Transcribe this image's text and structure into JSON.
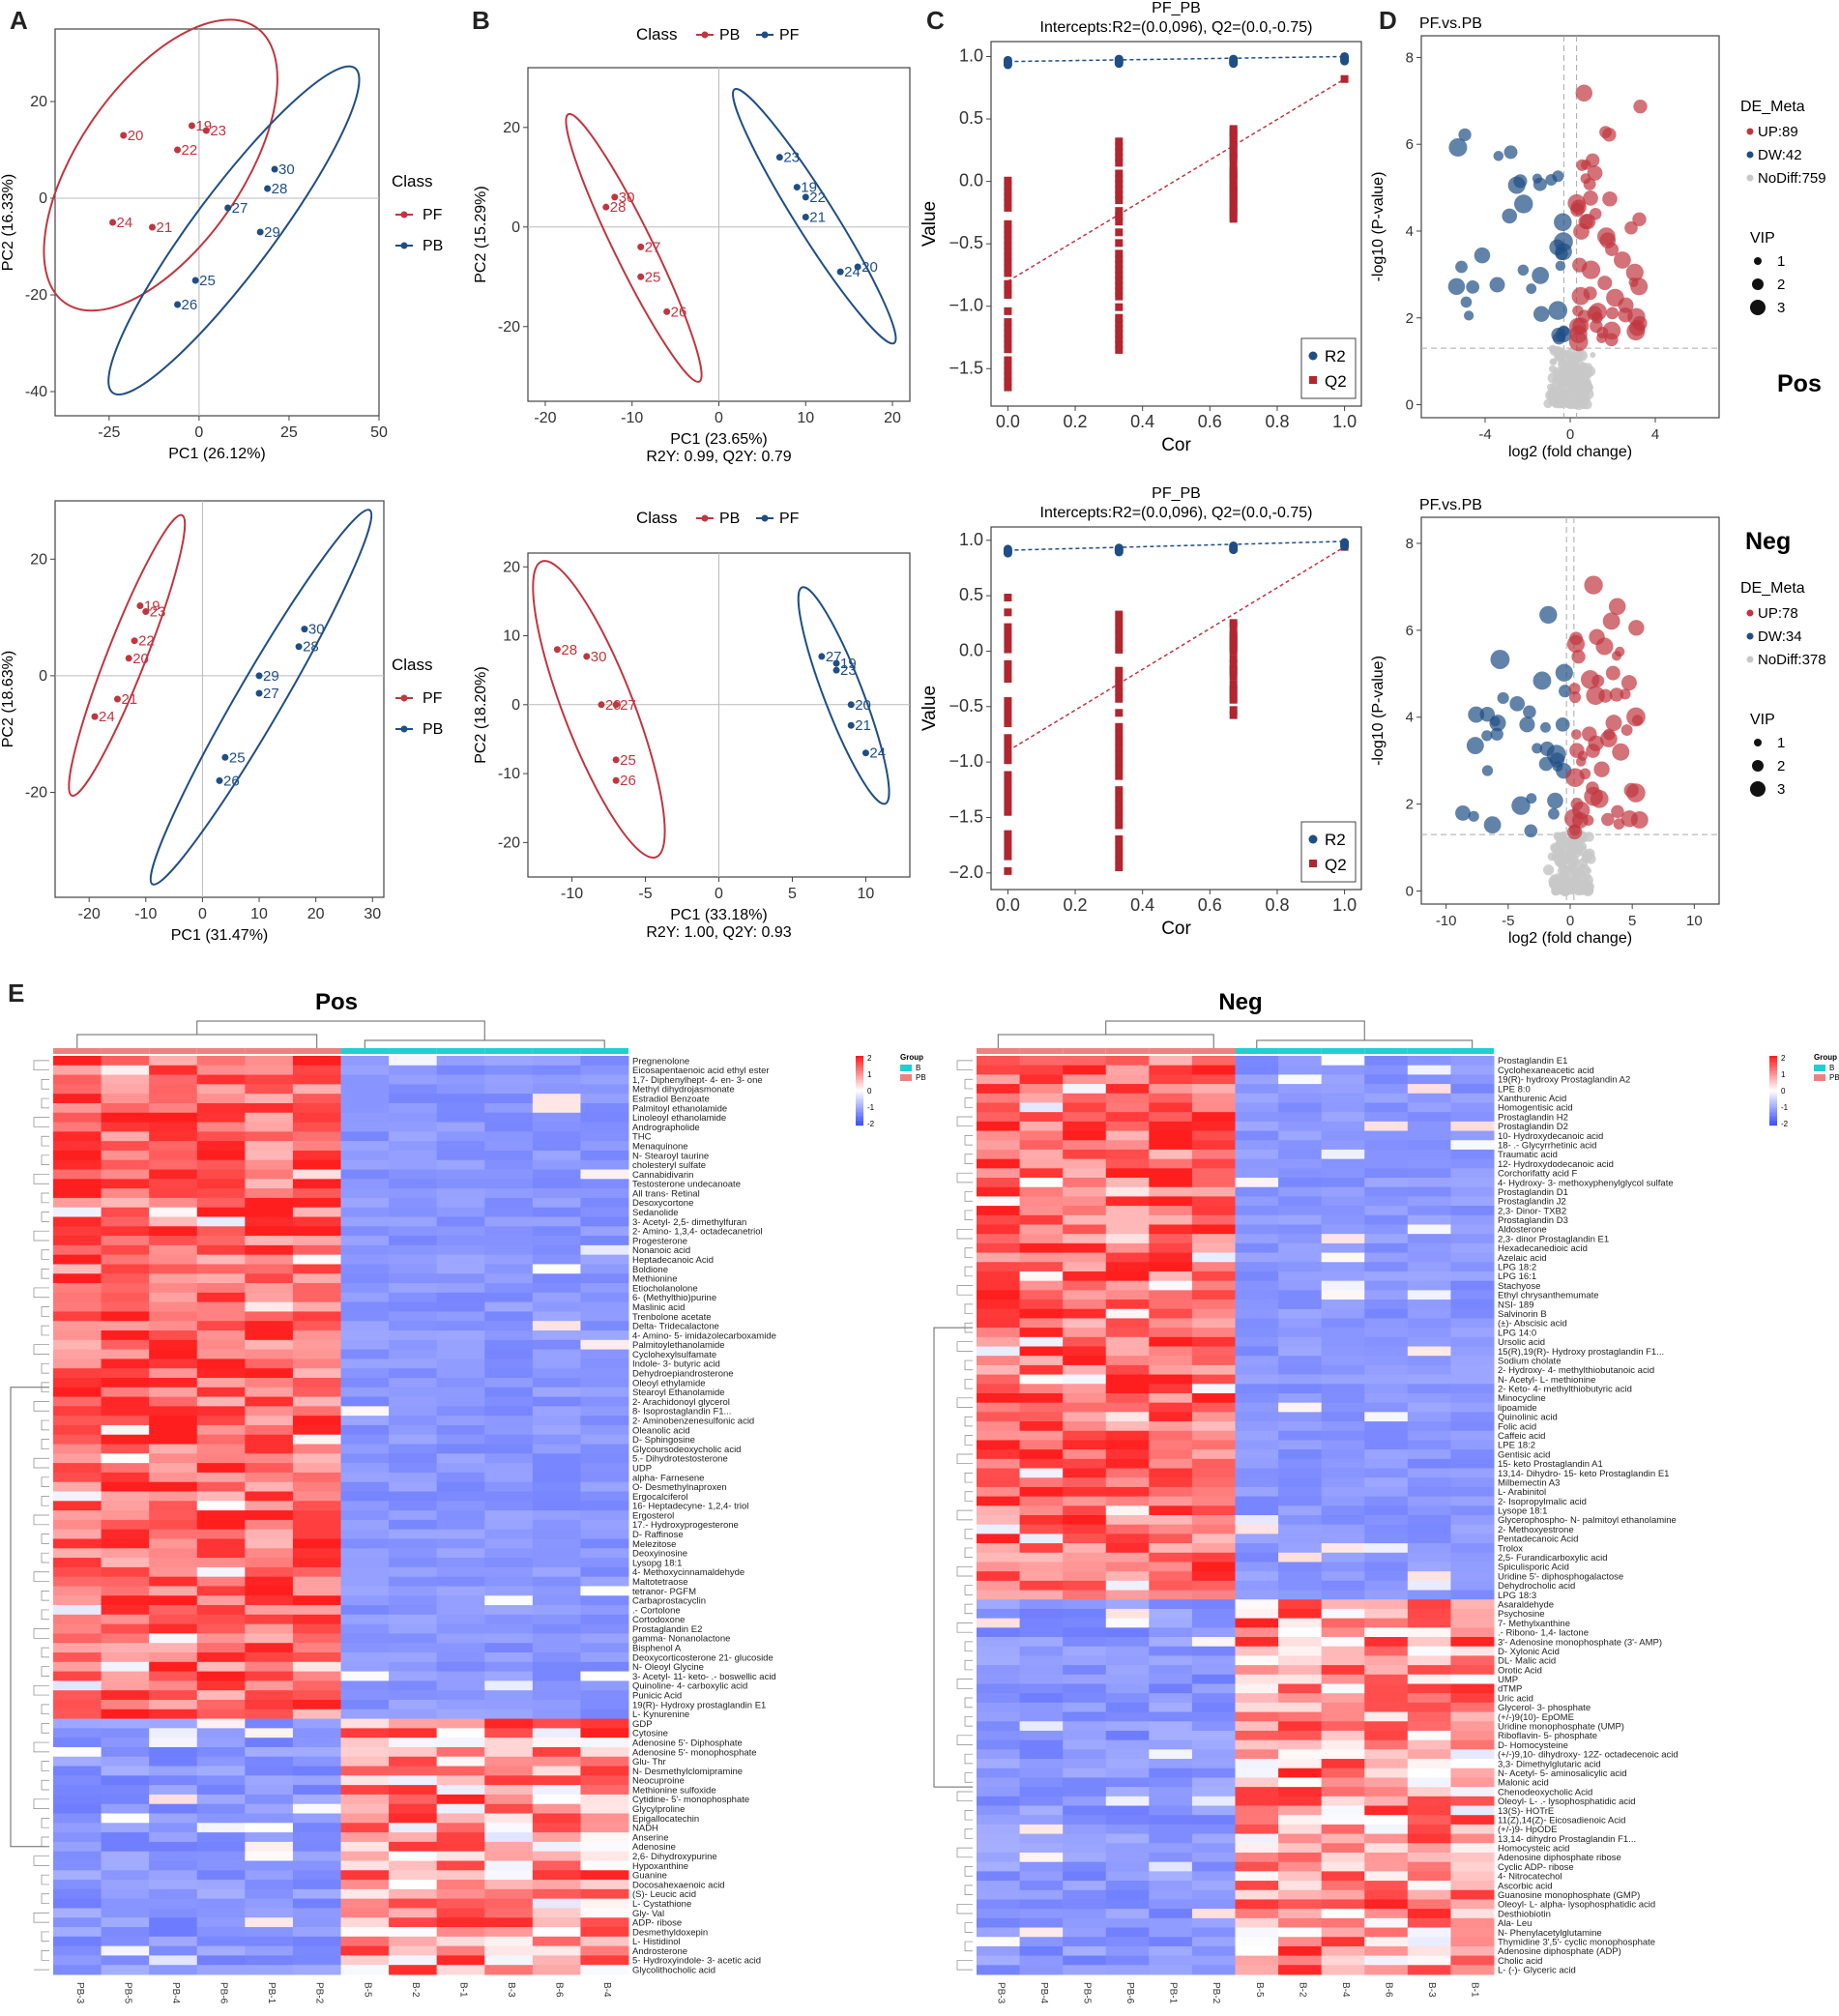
{
  "panel_labels": {
    "a": "A",
    "b": "B",
    "c": "C",
    "d": "D",
    "e": "E"
  },
  "chart_data": [
    {
      "id": "A_pos",
      "type": "scatter",
      "title": "",
      "xlabel": "PC1 (26.12%)",
      "ylabel": "PC2 (16.33%)",
      "xlim": [
        -40,
        50
      ],
      "ylim": [
        -45,
        35
      ],
      "xticks": [
        -25,
        0,
        25,
        50
      ],
      "yticks": [
        -40,
        -20,
        0,
        20
      ],
      "legend_title": "Class",
      "legend": [
        "PF",
        "PB"
      ],
      "series": [
        {
          "name": "PF",
          "color": "#c0363f",
          "points": [
            [
              -21,
              13,
              "20"
            ],
            [
              -2,
              15,
              "19"
            ],
            [
              2,
              14,
              "23"
            ],
            [
              -6,
              10,
              "22"
            ],
            [
              -24,
              -5,
              "24"
            ],
            [
              -13,
              -6,
              "21"
            ]
          ]
        },
        {
          "name": "PB",
          "color": "#1f4e85",
          "points": [
            [
              21,
              6,
              "30"
            ],
            [
              19,
              2,
              "28"
            ],
            [
              8,
              -2,
              "27"
            ],
            [
              17,
              -7,
              "29"
            ],
            [
              -1,
              -17,
              "25"
            ],
            [
              -6,
              -22,
              "26"
            ]
          ]
        }
      ]
    },
    {
      "id": "B_pos",
      "type": "scatter",
      "title": "",
      "xlabel": "PC1 (23.65%)",
      "ylabel": "PC2 (15.29%)",
      "subtitle": "R2Y: 0.99, Q2Y: 0.79",
      "xlim": [
        -22,
        22
      ],
      "ylim": [
        -35,
        32
      ],
      "xticks": [
        -20,
        -10,
        0,
        10,
        20
      ],
      "yticks": [
        -20,
        0,
        20
      ],
      "legend_title": "Class",
      "legend": [
        "PB",
        "PF"
      ],
      "series": [
        {
          "name": "PB",
          "color": "#c0363f",
          "points": [
            [
              -12,
              6,
              "30"
            ],
            [
              -13,
              4,
              "28"
            ],
            [
              -9,
              -4,
              "27"
            ],
            [
              -9,
              -10,
              "25"
            ],
            [
              -6,
              -17,
              "26"
            ]
          ]
        },
        {
          "name": "PF",
          "color": "#1f4e85",
          "points": [
            [
              7,
              14,
              "23"
            ],
            [
              9,
              8,
              "19"
            ],
            [
              10,
              6,
              "22"
            ],
            [
              10,
              2,
              "21"
            ],
            [
              16,
              -8,
              "20"
            ],
            [
              14,
              -9,
              "24"
            ]
          ]
        }
      ]
    },
    {
      "id": "C_pos",
      "type": "scatter",
      "title": "PF_PB",
      "subtitle": "Intercepts:R2=(0.0,096), Q2=(0.0,-0.75)",
      "xlabel": "Cor",
      "ylabel": "Value",
      "xlim": [
        -0.05,
        1.05
      ],
      "ylim": [
        -1.8,
        1.12
      ],
      "xticks": [
        0.0,
        0.2,
        0.4,
        0.6,
        0.8,
        1.0
      ],
      "yticks": [
        -1.5,
        -1.0,
        -0.5,
        0.0,
        0.5,
        1.0
      ],
      "legend": [
        "R2",
        "Q2"
      ],
      "r2_points": [
        [
          0,
          0.97
        ],
        [
          0.33,
          0.98
        ],
        [
          0.67,
          0.98
        ],
        [
          1.0,
          1.0
        ]
      ],
      "q2_columns": [
        [
          0,
          -1.65,
          0.05
        ],
        [
          0.33,
          -1.35,
          0.32
        ],
        [
          0.67,
          -0.3,
          0.42
        ]
      ],
      "r2_line": [
        [
          0,
          0.96
        ],
        [
          1,
          1.0
        ]
      ],
      "q2_line": [
        [
          0,
          -0.8
        ],
        [
          1,
          0.82
        ]
      ]
    },
    {
      "id": "D_pos",
      "type": "scatter",
      "title": "PF.vs.PB",
      "xlabel": "log2 (fold change)",
      "ylabel": "-log10 (P-value)",
      "xlim": [
        -7,
        7
      ],
      "ylim": [
        -0.3,
        8.5
      ],
      "xticks": [
        -4,
        0,
        4
      ],
      "yticks": [
        0,
        2,
        4,
        6,
        8
      ],
      "mode": "Pos",
      "legend_title": "DE_Meta",
      "legend": [
        "UP:89",
        "DW:42",
        "NoDiff:759"
      ],
      "vip_title": "VIP",
      "vip": [
        "1",
        "2",
        "3"
      ],
      "threshold_y": 1.3
    },
    {
      "id": "A_neg",
      "type": "scatter",
      "title": "",
      "xlabel": "PC1 (31.47%)",
      "ylabel": "PC2 (18.63%)",
      "xlim": [
        -26,
        32
      ],
      "ylim": [
        -38,
        30
      ],
      "xticks": [
        -20,
        -10,
        0,
        10,
        20,
        30
      ],
      "yticks": [
        -20,
        0,
        20
      ],
      "legend_title": "Class",
      "legend": [
        "PF",
        "PB"
      ],
      "series": [
        {
          "name": "PF",
          "color": "#c0363f",
          "points": [
            [
              -11,
              12,
              "19"
            ],
            [
              -10,
              11,
              "23"
            ],
            [
              -12,
              6,
              "22"
            ],
            [
              -13,
              3,
              "20"
            ],
            [
              -15,
              -4,
              "21"
            ],
            [
              -19,
              -7,
              "24"
            ]
          ]
        },
        {
          "name": "PB",
          "color": "#1f4e85",
          "points": [
            [
              18,
              8,
              "30"
            ],
            [
              17,
              5,
              "28"
            ],
            [
              10,
              0,
              "29"
            ],
            [
              10,
              -3,
              "27"
            ],
            [
              4,
              -14,
              "25"
            ],
            [
              3,
              -18,
              "26"
            ]
          ]
        }
      ]
    },
    {
      "id": "B_neg",
      "type": "scatter",
      "title": "",
      "xlabel": "PC1 (33.18%)",
      "ylabel": "PC2 (18.20%)",
      "subtitle": "R2Y: 1.00, Q2Y: 0.93",
      "xlim": [
        -13,
        13
      ],
      "ylim": [
        -25,
        22
      ],
      "xticks": [
        -10,
        -5,
        0,
        5,
        10
      ],
      "yticks": [
        -20,
        -10,
        0,
        10,
        20
      ],
      "legend_title": "Class",
      "legend": [
        "PB",
        "PF"
      ],
      "series": [
        {
          "name": "PB",
          "color": "#c0363f",
          "points": [
            [
              -11,
              8,
              "28"
            ],
            [
              -9,
              7,
              "30"
            ],
            [
              -8,
              0,
              "29"
            ],
            [
              -7,
              0,
              "27"
            ],
            [
              -7,
              -8,
              "25"
            ],
            [
              -7,
              -11,
              "26"
            ]
          ]
        },
        {
          "name": "PF",
          "color": "#1f4e85",
          "points": [
            [
              7,
              7,
              "27"
            ],
            [
              8,
              6,
              "19"
            ],
            [
              8,
              5,
              "23"
            ],
            [
              9,
              0,
              "20"
            ],
            [
              9,
              -3,
              "21"
            ],
            [
              10,
              -7,
              "24"
            ]
          ]
        }
      ]
    },
    {
      "id": "C_neg",
      "type": "scatter",
      "title": "PF_PB",
      "subtitle": "Intercepts:R2=(0.0,096), Q2=(0.0,-0.75)",
      "xlabel": "Cor",
      "ylabel": "Value",
      "xlim": [
        -0.05,
        1.05
      ],
      "ylim": [
        -2.15,
        1.12
      ],
      "xticks": [
        0.0,
        0.2,
        0.4,
        0.6,
        0.8,
        1.0
      ],
      "yticks": [
        -2.0,
        -1.5,
        -1.0,
        -0.5,
        0.0,
        0.5,
        1.0
      ],
      "legend": [
        "R2",
        "Q2"
      ],
      "r2_points": [
        [
          0,
          0.92
        ],
        [
          0.33,
          0.93
        ],
        [
          0.67,
          0.95
        ],
        [
          1.0,
          0.98
        ]
      ],
      "q2_columns": [
        [
          0,
          -2.05,
          0.55
        ],
        [
          0.33,
          -1.95,
          0.52
        ],
        [
          0.67,
          -0.6,
          0.3
        ]
      ],
      "r2_line": [
        [
          0,
          0.91
        ],
        [
          1,
          0.99
        ]
      ],
      "q2_line": [
        [
          0,
          -0.9
        ],
        [
          1,
          0.94
        ]
      ]
    },
    {
      "id": "D_neg",
      "type": "scatter",
      "title": "PF.vs.PB",
      "xlabel": "log2 (fold change)",
      "ylabel": "-log10 (P-value)",
      "xlim": [
        -12,
        12
      ],
      "ylim": [
        -0.3,
        8.6
      ],
      "xticks": [
        -10,
        -5,
        0,
        5,
        10
      ],
      "yticks": [
        0,
        2,
        4,
        6,
        8
      ],
      "mode": "Neg",
      "legend_title": "DE_Meta",
      "legend": [
        "UP:78",
        "DW:34",
        "NoDiff:378"
      ],
      "vip_title": "VIP",
      "vip": [
        "1",
        "2",
        "3"
      ],
      "threshold_y": 1.3
    },
    {
      "id": "E_pos",
      "type": "heatmap",
      "title": "Pos",
      "columns": [
        "PB-3",
        "PB-5",
        "PB-4",
        "PB-6",
        "PB-1",
        "PB-2",
        "B-5",
        "B-2",
        "B-1",
        "B-3",
        "B-6",
        "B-4"
      ],
      "legend_title": "Group",
      "legend": [
        "B",
        "PB"
      ],
      "scale": [
        "2",
        "1",
        "0",
        "-1",
        "-2"
      ],
      "rows_up": 70,
      "rows": [
        "Pregnenolone",
        "Eicosapentaenoic acid ethyl ester",
        "1,7- Diphenylhept- 4- en- 3- one",
        "Methyl dihydrojasmonate",
        "Estradiol Benzoate",
        "Palmitoyl ethanolamide",
        "Linoleoyl ethanolamide",
        "Andrographolide",
        "THC",
        "Menaquinone",
        "N- Stearoyl taurine",
        "cholesteryl sulfate",
        "Cannabidivarin",
        "Testosterone undecanoate",
        "All trans- Retinal",
        "Desoxycortone",
        "Sedanolide",
        "3- Acetyl- 2,5- dimethylfuran",
        "2- Amino- 1,3,4- octadecanetriol",
        "Progesterone",
        "Nonanoic acid",
        "Heptadecanoic Acid",
        "Boldione",
        "Methionine",
        "Etiocholanolone",
        "6- (Methylthio)purine",
        "Maslinic acid",
        "Trenbolone acetate",
        "Delta- Tridecalactone",
        "4- Amino- 5- imidazolecarboxamide",
        "Palmitoylethanolamide",
        "Cyclohexylsulfamate",
        "Indole- 3- butyric acid",
        "Dehydroepiandrosterone",
        "Oleoyl ethylamide",
        "Stearoyl Ethanolamide",
        "2- Arachidonoyl glycerol",
        "8- Isoprostaglandin F1...",
        "2- Aminobenzenesulfonic acid",
        "Oleanolic acid",
        "D- Sphingosine",
        "Glycoursodeoxycholic acid",
        "5.- Dihydrotestosterone",
        "UDP",
        "alpha- Farnesene",
        "O- Desmethylnaproxen",
        "Ergocalciferol",
        "16- Heptadecyne- 1,2,4- triol",
        "Ergosterol",
        "17.- Hydroxyprogesterone",
        "D- Raffinose",
        "Melezitose",
        "Deoxyinosine",
        "Lysopg 18:1",
        "4- Methoxycinnamaldehyde",
        "Maltotetraose",
        "tetranor- PGFM",
        "Carbaprostacyclin",
        ".- Cortolone",
        "Cortodoxone",
        "Prostaglandin E2",
        "gamma- Nonanolactone",
        "Bisphenol A",
        "Deoxycorticosterone 21- glucoside",
        "N- Oleoyl Glycine",
        "3- Acetyl- 11- keto- .- boswellic acid",
        "Quinoline- 4- carboxylic acid",
        "Punicic Acid",
        "19(R)- Hydroxy prostaglandin E1",
        "L- Kynurenine",
        "GDP",
        "Cytosine",
        "Adenosine 5'- Diphosphate",
        "Adenosine 5'- monophosphate",
        "Glu- Thr",
        "N- Desmethylclomipramine",
        "Neocuproine",
        "Methionine sulfoxide",
        "Cytidine- 5'- monophosphate",
        "Glycylproline",
        "Epigallocatechin",
        "NADH",
        "Anserine",
        "Adenosine",
        "2,6- Dihydroxypurine",
        "Hypoxanthine",
        "Guanine",
        "Docosahexaenoic acid",
        "(S)- Leucic acid",
        "L- Cystathione",
        "Gly- Val",
        "ADP- ribose",
        "Desmethyldoxepin",
        "L- Histidinol",
        "Androsterone",
        "5- Hydroxyindole- 3- acetic acid",
        "Glycolithocholic acid"
      ]
    },
    {
      "id": "E_neg",
      "type": "heatmap",
      "title": "Neg",
      "columns": [
        "PB-3",
        "PB-4",
        "PB-5",
        "PB-6",
        "PB-1",
        "PB-2",
        "B-5",
        "B-2",
        "B-4",
        "B-6",
        "B-3",
        "B-1"
      ],
      "legend_title": "Group",
      "legend": [
        "B",
        "PB"
      ],
      "scale": [
        "2",
        "1",
        "0",
        "-1",
        "-2"
      ],
      "rows_up": 58,
      "rows": [
        "Prostaglandin E1",
        "Cyclohexaneacetic acid",
        "19(R)- hydroxy Prostaglandin A2",
        "LPE 8:0",
        "Xanthurenic Acid",
        "Homogentisic acid",
        "Prostaglandin H2",
        "Prostaglandin D2",
        "10- Hydroxydecanoic acid",
        "18- .- Glycyrrhetinic acid",
        "Traumatic acid",
        "12- Hydroxydodecanoic acid",
        "Corchorifatty acid F",
        "4- Hydroxy- 3- methoxyphenylglycol sulfate",
        "Prostaglandin D1",
        "Prostaglandin J2",
        "2,3- Dinor- TXB2",
        "Prostaglandin D3",
        "Aldosterone",
        "2,3- dinor Prostaglandin E1",
        "Hexadecanedioic acid",
        "Azelaic acid",
        "LPG 18:2",
        "LPG 16:1",
        "Stachyose",
        "Ethyl chrysanthemumate",
        "NSI- 189",
        "Salvinorin B",
        "(±)- Abscisic acid",
        "LPG 14:0",
        "Ursolic acid",
        "15(R),19(R)- Hydroxy prostaglandin F1...",
        "Sodium cholate",
        "2- Hydroxy- 4- methylthiobutanoic acid",
        "N- Acetyl- L- methionine",
        "2- Keto- 4- methylthiobutyric acid",
        "Minocycline",
        "lipoamide",
        "Quinolinic acid",
        "Folic acid",
        "Caffeic acid",
        "LPE 18:2",
        "Gentisic acid",
        "15- keto Prostaglandin A1",
        "13,14- Dihydro- 15- keto Prostaglandin E1",
        "Milbemectin A3",
        "L- Arabinitol",
        "2- Isopropylmalic acid",
        "Lysope 18:1",
        "Glycerophospho- N- palmitoyl ethanolamine",
        "2- Methoxyestrone",
        "Pentadecanoic Acid",
        "Trolox",
        "2,5- Furandicarboxylic acid",
        "Spiculisporic Acid",
        "Uridine 5'- diphosphogalactose",
        "Dehydrocholic acid",
        "LPG 18:3",
        "Asaraldehyde",
        "Psychosine",
        "7- Methylxanthine",
        ".- Ribono- 1,4- lactone",
        "3'- Adenosine monophosphate (3'- AMP)",
        "D- Xylonic Acid",
        "DL- Malic acid",
        "Orotic Acid",
        "UMP",
        "dTMP",
        "Uric acid",
        "Glycerol- 3- phosphate",
        "(+/-)9(10)- EpOME",
        "Uridine monophosphate (UMP)",
        "Riboflavin- 5- phosphate",
        "D- Homocysteine",
        "(+/-)9,10- dihydroxy- 12Z- octadecenoic acid",
        "3,3- Dimethylglutaric acid",
        "N- Acetyl- 5- aminosalicylic acid",
        "Malonic acid",
        "Chenodeoxycholic Acid",
        "Oleoyl- L- .- lysophosphatidic acid",
        "13(S)- HOTrE",
        "11(Z),14(Z)- Eicosadienoic Acid",
        "(+/-)9- HpODE",
        "13,14- dihydro Prostaglandin F1...",
        "Homocysteic acid",
        "Adenosine diphosphate ribose",
        "Cyclic ADP- ribose",
        "4- Nitrocatechol",
        "Ascorbic acid",
        "Guanosine monophosphate (GMP)",
        "Oleoyl- L- alpha- lysophosphatidic acid",
        "Desthiobiotin",
        "Ala- Leu",
        "N- Phenylacetylglutamine",
        "Thymidine 3',5'- cyclic monophosphate",
        "Adenosine diphosphate (ADP)",
        "Cholic acid",
        "L- (-)- Glyceric acid"
      ]
    }
  ]
}
